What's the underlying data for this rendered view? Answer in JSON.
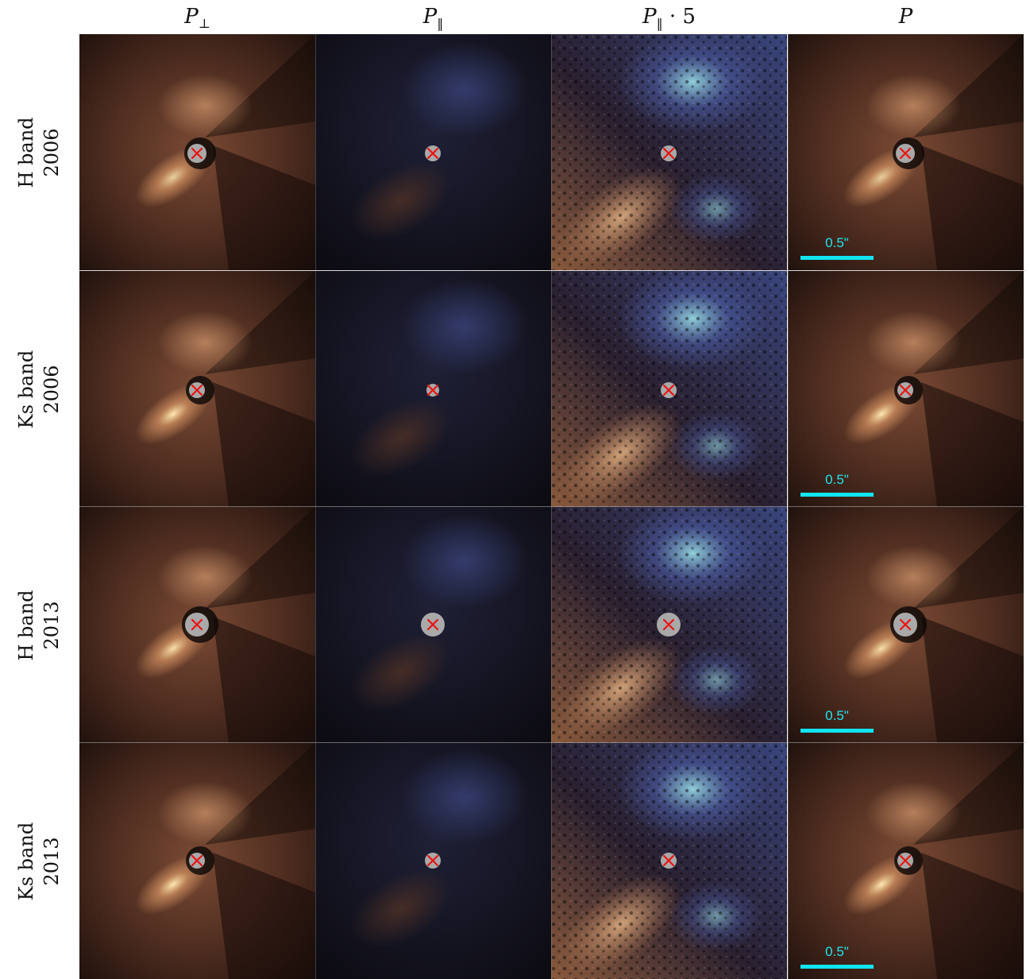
{
  "columns": [
    {
      "sym": "P",
      "sub": "⊥",
      "suffix": ""
    },
    {
      "sym": "P",
      "sub": "‖",
      "suffix": ""
    },
    {
      "sym": "P",
      "sub": "‖",
      "suffix": " ·   5"
    },
    {
      "sym": "P",
      "sub": "",
      "suffix": ""
    }
  ],
  "rows": [
    {
      "band": "H band",
      "year": "2006"
    },
    {
      "band": "Ks band",
      "year": "2006"
    },
    {
      "band": "H band",
      "year": "2013"
    },
    {
      "band": "Ks band",
      "year": "2013"
    }
  ],
  "scale_label": "0.5\"",
  "colors": {
    "warm": "#c98a5c",
    "warm_bright": "#ffe9b0",
    "cool": "#4a5aa0",
    "cool_bright": "#9fe8f0",
    "mask": "#a9a9a9",
    "star_marker": "#ee1111",
    "scalebar": "#11e4f0"
  }
}
